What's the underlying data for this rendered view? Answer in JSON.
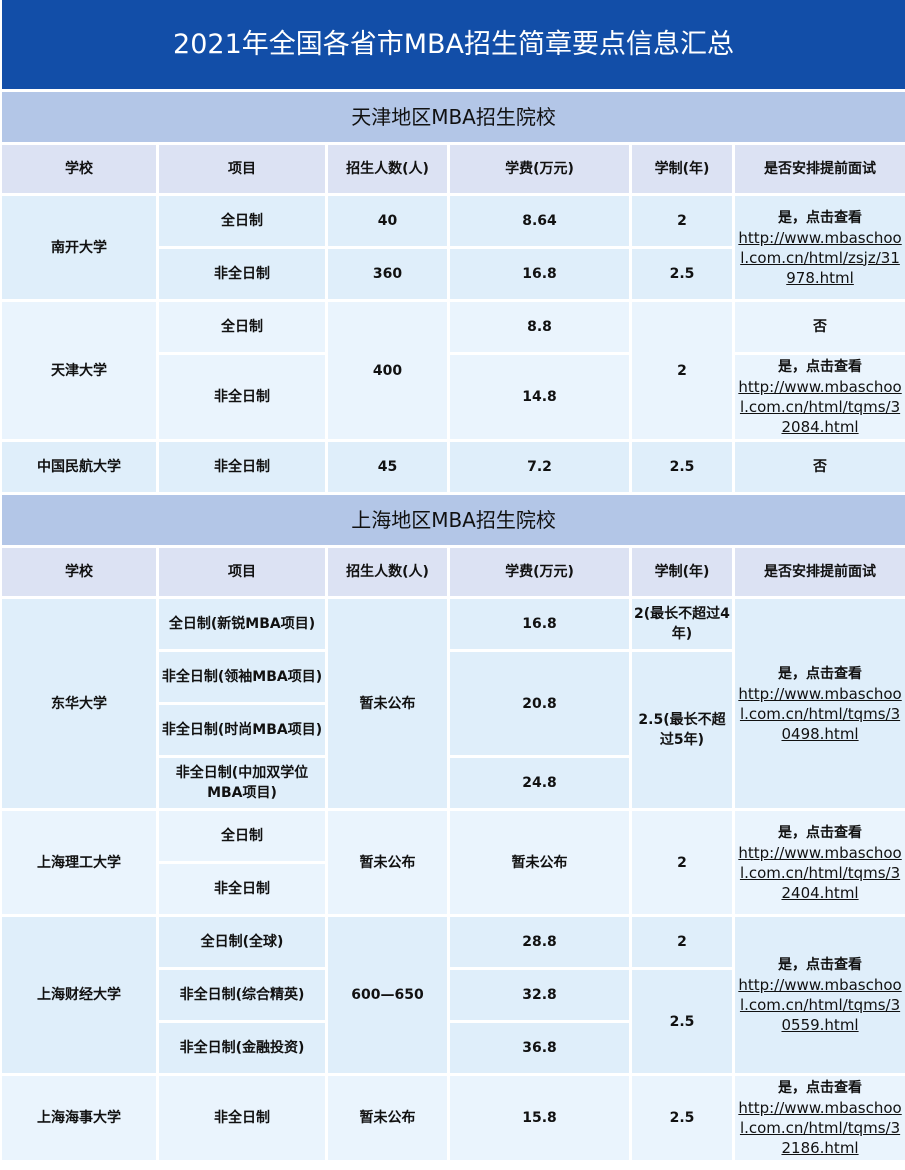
{
  "title": "2021年全国各省市MBA招生简章要点信息汇总",
  "headers": [
    "学校",
    "项目",
    "招生人数(人)",
    "学费(万元)",
    "学制(年)",
    "是否安排提前面试"
  ],
  "link_label": "是，点击查看",
  "tianjin": {
    "section": "天津地区MBA招生院校",
    "nankai": {
      "school": "南开大学",
      "p1": "全日制",
      "p2": "非全日制",
      "n1": "40",
      "n2": "360",
      "f1": "8.64",
      "f2": "16.8",
      "y1": "2",
      "y2": "2.5",
      "url": "http://www.mbaschool.com.cn/html/zsjz/31978.html"
    },
    "tju": {
      "school": "天津大学",
      "p1": "全日制",
      "p2": "非全日制",
      "n": "400",
      "f1": "8.8",
      "f2": "14.8",
      "y": "2",
      "i1": "否",
      "url": "http://www.mbaschool.com.cn/html/tqms/32084.html"
    },
    "cauc": {
      "school": "中国民航大学",
      "p": "非全日制",
      "n": "45",
      "f": "7.2",
      "y": "2.5",
      "i": "否"
    }
  },
  "shanghai": {
    "section": "上海地区MBA招生院校",
    "dhu": {
      "school": "东华大学",
      "p1": "全日制(新锐MBA项目)",
      "p2": "非全日制(领袖MBA项目)",
      "p3": "非全日制(时尚MBA项目)",
      "p4": "非全日制(中加双学位MBA项目)",
      "n": "暂未公布",
      "f1": "16.8",
      "f2": "20.8",
      "f3": "24.8",
      "y1": "2(最长不超过4年)",
      "y2": "2.5(最长不超过5年)",
      "url": "http://www.mbaschool.com.cn/html/tqms/30498.html"
    },
    "usst": {
      "school": "上海理工大学",
      "p1": "全日制",
      "p2": "非全日制",
      "n": "暂未公布",
      "f": "暂未公布",
      "y": "2",
      "url": "http://www.mbaschool.com.cn/html/tqms/32404.html"
    },
    "sufe": {
      "school": "上海财经大学",
      "p1": "全日制(全球)",
      "p2": "非全日制(综合精英)",
      "p3": "非全日制(金融投资)",
      "n": "600—650",
      "f1": "28.8",
      "f2": "32.8",
      "f3": "36.8",
      "y1": "2",
      "y2": "2.5",
      "url": "http://www.mbaschool.com.cn/html/tqms/30559.html"
    },
    "smu": {
      "school": "上海海事大学",
      "p": "非全日制",
      "n": "暂未公布",
      "f": "15.8",
      "y": "2.5",
      "url": "http://www.mbaschool.com.cn/html/tqms/32186.html"
    }
  }
}
